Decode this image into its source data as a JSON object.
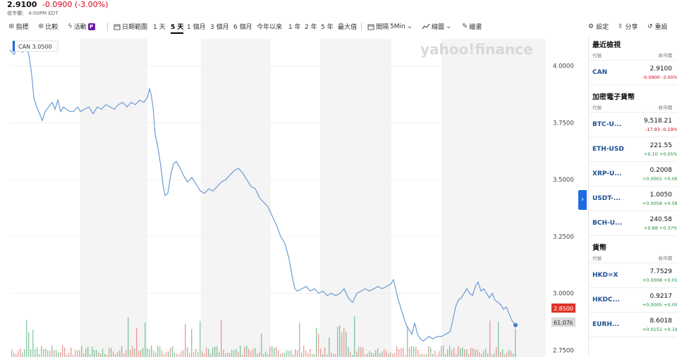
{
  "quote": {
    "price": "2.9100",
    "change": "-0.0900 (-3.00%)",
    "status": "收市價：",
    "time": "4:00PM EDT"
  },
  "toolbar": {
    "indicators": "指標",
    "compare": "比較",
    "events": "活動",
    "events_badge": "P",
    "date_range": "日期範圍",
    "ranges": [
      "1 天",
      "5 天",
      "1 個月",
      "3 個月",
      "6 個月",
      "今年以來",
      "1 年",
      "2 年",
      "5 年",
      "最大值"
    ],
    "active_range": "5 天",
    "interval_label": "間隔",
    "interval_value": "5Min",
    "chart_type": "線圖",
    "draw": "繪畫",
    "settings": "設定",
    "share": "分享",
    "reset": "重設"
  },
  "icons": {
    "indicators": "plus-circle-icon",
    "compare": "plus-circle-icon",
    "events": "lightning-icon",
    "date_range": "calendar-icon",
    "interval": "calendar-icon",
    "chart_type": "line-chart-icon",
    "draw": "pencil-icon",
    "settings": "gear-icon",
    "share": "share-icon",
    "reset": "reset-icon",
    "collapse": "chevron-right-icon"
  },
  "watermark": "yahoo!finance",
  "chart_data": {
    "type": "line",
    "series": [
      {
        "name": "CAN",
        "legend_value": "3.0500"
      }
    ],
    "ylim": [
      2.72,
      4.12
    ],
    "yticks": [
      "4.0000",
      "3.7500",
      "3.5000",
      "3.2500",
      "3.0000",
      "2.7500"
    ],
    "last_price_label": "2.8500",
    "volume_label": "61.07k",
    "line_color": "#6b9bd2",
    "volume_color_up": "#2e9e5b",
    "volume_color_down": "#e0554f",
    "day_shading": true
  },
  "colors": {
    "accent": "#1e6be0",
    "negative": "#d0021b",
    "positive": "#1a8f3c",
    "price_tag": "#e0332a"
  },
  "watchlists": [
    {
      "title": "最近檢視",
      "col_symbol": "代號",
      "col_price": "收市價",
      "rows": [
        {
          "symbol": "CAN",
          "price": "2.9100",
          "change": "-0.0900 -3.00%",
          "dir": "neg"
        }
      ]
    },
    {
      "title": "加密電子貨幣",
      "col_symbol": "代號",
      "col_price": "收市價",
      "rows": [
        {
          "symbol": "BTC-U...",
          "price": "9,518.21",
          "change": "-17.93 -0.19%",
          "dir": "neg"
        },
        {
          "symbol": "ETH-USD",
          "price": "221.55",
          "change": "+0.10 +0.05%",
          "dir": "pos"
        },
        {
          "symbol": "XRP-U...",
          "price": "0.2008",
          "change": "+0.0001 +0.06",
          "dir": "pos"
        },
        {
          "symbol": "USDT-...",
          "price": "1.0050",
          "change": "+0.0058 +0.58",
          "dir": "pos"
        },
        {
          "symbol": "BCH-U...",
          "price": "240.58",
          "change": "+0.88 +0.37%",
          "dir": "pos"
        }
      ]
    },
    {
      "title": "貨幣",
      "col_symbol": "代號",
      "col_price": "收市價",
      "rows": [
        {
          "symbol": "HKD=X",
          "price": "7.7529",
          "change": "+0.0008 +0.01",
          "dir": "pos"
        },
        {
          "symbol": "HKDC...",
          "price": "0.9217",
          "change": "+0.0005 +0.05",
          "dir": "pos"
        },
        {
          "symbol": "EURH...",
          "price": "8.6018",
          "change": "+0.0151 +0.18",
          "dir": "pos"
        }
      ]
    }
  ]
}
